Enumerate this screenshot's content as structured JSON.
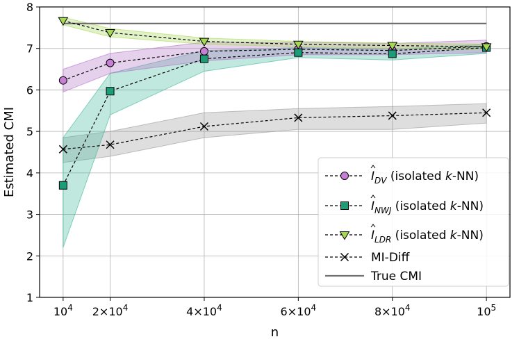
{
  "chart_data": {
    "type": "line",
    "xlabel": "n",
    "ylabel": "Estimated CMI",
    "ylim": [
      1,
      8
    ],
    "xlim": [
      5000,
      105000
    ],
    "grid": true,
    "legend_position": "lower-right",
    "x": [
      10000,
      20000,
      40000,
      60000,
      80000,
      100000
    ],
    "x_tick_labels": [
      {
        "value": 10000,
        "base": "10",
        "exp": "4",
        "mult": ""
      },
      {
        "value": 20000,
        "base": "10",
        "exp": "4",
        "mult": "2×"
      },
      {
        "value": 40000,
        "base": "10",
        "exp": "4",
        "mult": "4×"
      },
      {
        "value": 60000,
        "base": "10",
        "exp": "4",
        "mult": "6×"
      },
      {
        "value": 80000,
        "base": "10",
        "exp": "4",
        "mult": "8×"
      },
      {
        "value": 100000,
        "base": "10",
        "exp": "5",
        "mult": ""
      }
    ],
    "y_ticks": [
      1,
      2,
      3,
      4,
      5,
      6,
      7,
      8
    ],
    "true_cmi": 7.6,
    "true_cmi_label": "True CMI",
    "series": [
      {
        "name": "DV",
        "label_hat": "I",
        "label_sub": "DV",
        "label_suffix": " (isolated ",
        "label_k": "k",
        "label_end": "-NN)",
        "marker": "circle",
        "color": "#c77fd6",
        "band_color": "#b070c8",
        "values": [
          6.23,
          6.65,
          6.93,
          6.98,
          6.95,
          7.05
        ],
        "lower": [
          5.95,
          6.4,
          6.7,
          6.85,
          6.85,
          6.9
        ],
        "upper": [
          6.5,
          6.88,
          7.15,
          7.15,
          7.12,
          7.2
        ]
      },
      {
        "name": "NWJ",
        "label_hat": "I",
        "label_sub": "NWJ",
        "label_suffix": " (isolated ",
        "label_k": "k",
        "label_end": "-NN)",
        "marker": "square",
        "color": "#1b9e77",
        "band_color": "#3fb898",
        "values": [
          3.7,
          5.97,
          6.75,
          6.9,
          6.87,
          7.02
        ],
        "lower": [
          2.2,
          5.4,
          6.45,
          6.78,
          6.72,
          6.88
        ],
        "upper": [
          4.85,
          6.4,
          6.95,
          7.02,
          6.98,
          7.1
        ]
      },
      {
        "name": "LDR",
        "label_hat": "I",
        "label_sub": "LDR",
        "label_suffix": " (isolated ",
        "label_k": "k",
        "label_end": "-NN)",
        "marker": "triangle",
        "color": "#a6d854",
        "band_color": "#a6d854",
        "values": [
          7.67,
          7.38,
          7.17,
          7.1,
          7.07,
          7.04
        ],
        "lower": [
          7.57,
          7.28,
          7.1,
          7.04,
          7.0,
          6.98
        ],
        "upper": [
          7.75,
          7.48,
          7.25,
          7.17,
          7.13,
          7.1
        ]
      },
      {
        "name": "MI-Diff",
        "label_plain": "MI-Diff",
        "marker": "x",
        "color": "#000000",
        "band_color": "#999999",
        "values": [
          4.57,
          4.68,
          5.12,
          5.33,
          5.38,
          5.45
        ],
        "lower": [
          4.25,
          4.4,
          4.85,
          5.05,
          5.05,
          5.2
        ],
        "upper": [
          4.85,
          5.0,
          5.45,
          5.55,
          5.6,
          5.67
        ]
      }
    ]
  }
}
